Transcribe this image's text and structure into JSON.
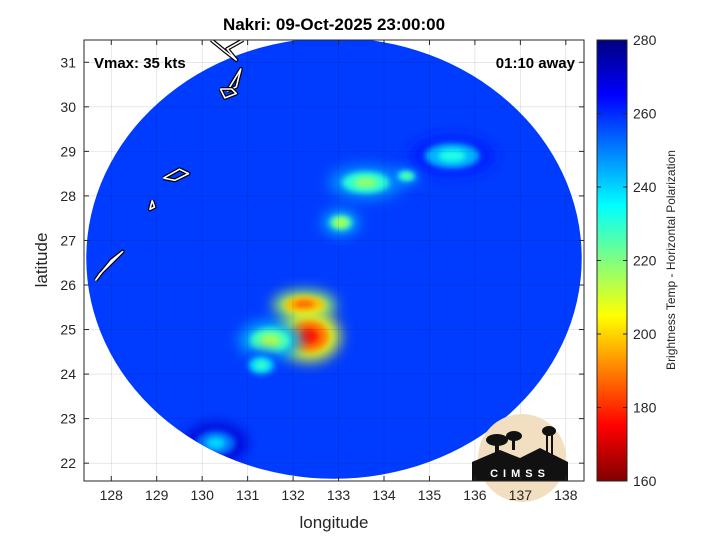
{
  "chart_data": {
    "type": "heatmap",
    "title": "Nakri: 09-Oct-2025 23:00:00",
    "annotations": {
      "left": "Vmax: 35 kts",
      "right": "01:10 away"
    },
    "xlabel": "longitude",
    "ylabel": "latitude",
    "xlim": [
      127.4,
      138.4
    ],
    "ylim": [
      21.6,
      31.5
    ],
    "xticks": [
      "128",
      "129",
      "130",
      "131",
      "132",
      "133",
      "134",
      "135",
      "136",
      "137",
      "138"
    ],
    "yticks": [
      "22",
      "23",
      "24",
      "25",
      "26",
      "27",
      "28",
      "29",
      "30",
      "31"
    ],
    "grid": true,
    "colorbar": {
      "label": "Brightness Temp - Horizontal Polarization",
      "range": [
        160,
        280
      ],
      "ticks": [
        "280",
        "260",
        "240",
        "220",
        "200",
        "180",
        "160"
      ],
      "colormap": "jet"
    },
    "swath": {
      "center": [
        132.9,
        26.6
      ],
      "radius_lon": 5.45,
      "radius_lat": 4.95
    },
    "background_temp": 258,
    "features": [
      {
        "lon": 132.25,
        "lat": 25.55,
        "rx": 0.55,
        "ry": 0.25,
        "temp": 185
      },
      {
        "lon": 132.35,
        "lat": 24.85,
        "rx": 0.55,
        "ry": 0.45,
        "temp": 178
      },
      {
        "lon": 131.5,
        "lat": 24.75,
        "rx": 0.55,
        "ry": 0.35,
        "temp": 215
      },
      {
        "lon": 131.3,
        "lat": 24.2,
        "rx": 0.35,
        "ry": 0.25,
        "temp": 228
      },
      {
        "lon": 133.05,
        "lat": 27.4,
        "rx": 0.3,
        "ry": 0.2,
        "temp": 212
      },
      {
        "lon": 133.6,
        "lat": 28.3,
        "rx": 0.65,
        "ry": 0.3,
        "temp": 218
      },
      {
        "lon": 134.5,
        "lat": 28.45,
        "rx": 0.25,
        "ry": 0.15,
        "temp": 220
      },
      {
        "lon": 135.5,
        "lat": 28.9,
        "rx": 0.75,
        "ry": 0.35,
        "temp": 232
      },
      {
        "lon": 130.3,
        "lat": 22.45,
        "rx": 0.55,
        "ry": 0.35,
        "temp": 240
      }
    ],
    "coastlines": [
      {
        "name": "kyushu-tip",
        "points": [
          [
            130.2,
            31.5
          ],
          [
            130.5,
            31.25
          ],
          [
            130.75,
            31.05
          ],
          [
            130.55,
            31.3
          ],
          [
            130.9,
            31.5
          ]
        ]
      },
      {
        "name": "osumi-islands",
        "points": [
          [
            130.55,
            30.35
          ],
          [
            130.7,
            30.6
          ],
          [
            130.85,
            30.85
          ],
          [
            130.75,
            30.45
          ],
          [
            130.55,
            30.35
          ]
        ]
      },
      {
        "name": "yakushima",
        "points": [
          [
            130.4,
            30.4
          ],
          [
            130.65,
            30.4
          ],
          [
            130.75,
            30.3
          ],
          [
            130.5,
            30.2
          ],
          [
            130.4,
            30.4
          ]
        ]
      },
      {
        "name": "amami",
        "points": [
          [
            129.15,
            28.4
          ],
          [
            129.5,
            28.6
          ],
          [
            129.7,
            28.5
          ],
          [
            129.4,
            28.35
          ],
          [
            129.15,
            28.4
          ]
        ]
      },
      {
        "name": "tokunoshima",
        "points": [
          [
            128.9,
            27.9
          ],
          [
            128.95,
            27.75
          ],
          [
            128.85,
            27.7
          ],
          [
            128.9,
            27.9
          ]
        ]
      },
      {
        "name": "okinawa",
        "points": [
          [
            127.65,
            26.1
          ],
          [
            127.8,
            26.3
          ],
          [
            128.0,
            26.55
          ],
          [
            128.25,
            26.75
          ],
          [
            127.95,
            26.45
          ],
          [
            127.75,
            26.25
          ],
          [
            127.65,
            26.1
          ]
        ]
      }
    ]
  },
  "logo": {
    "text": "CIMSS"
  }
}
